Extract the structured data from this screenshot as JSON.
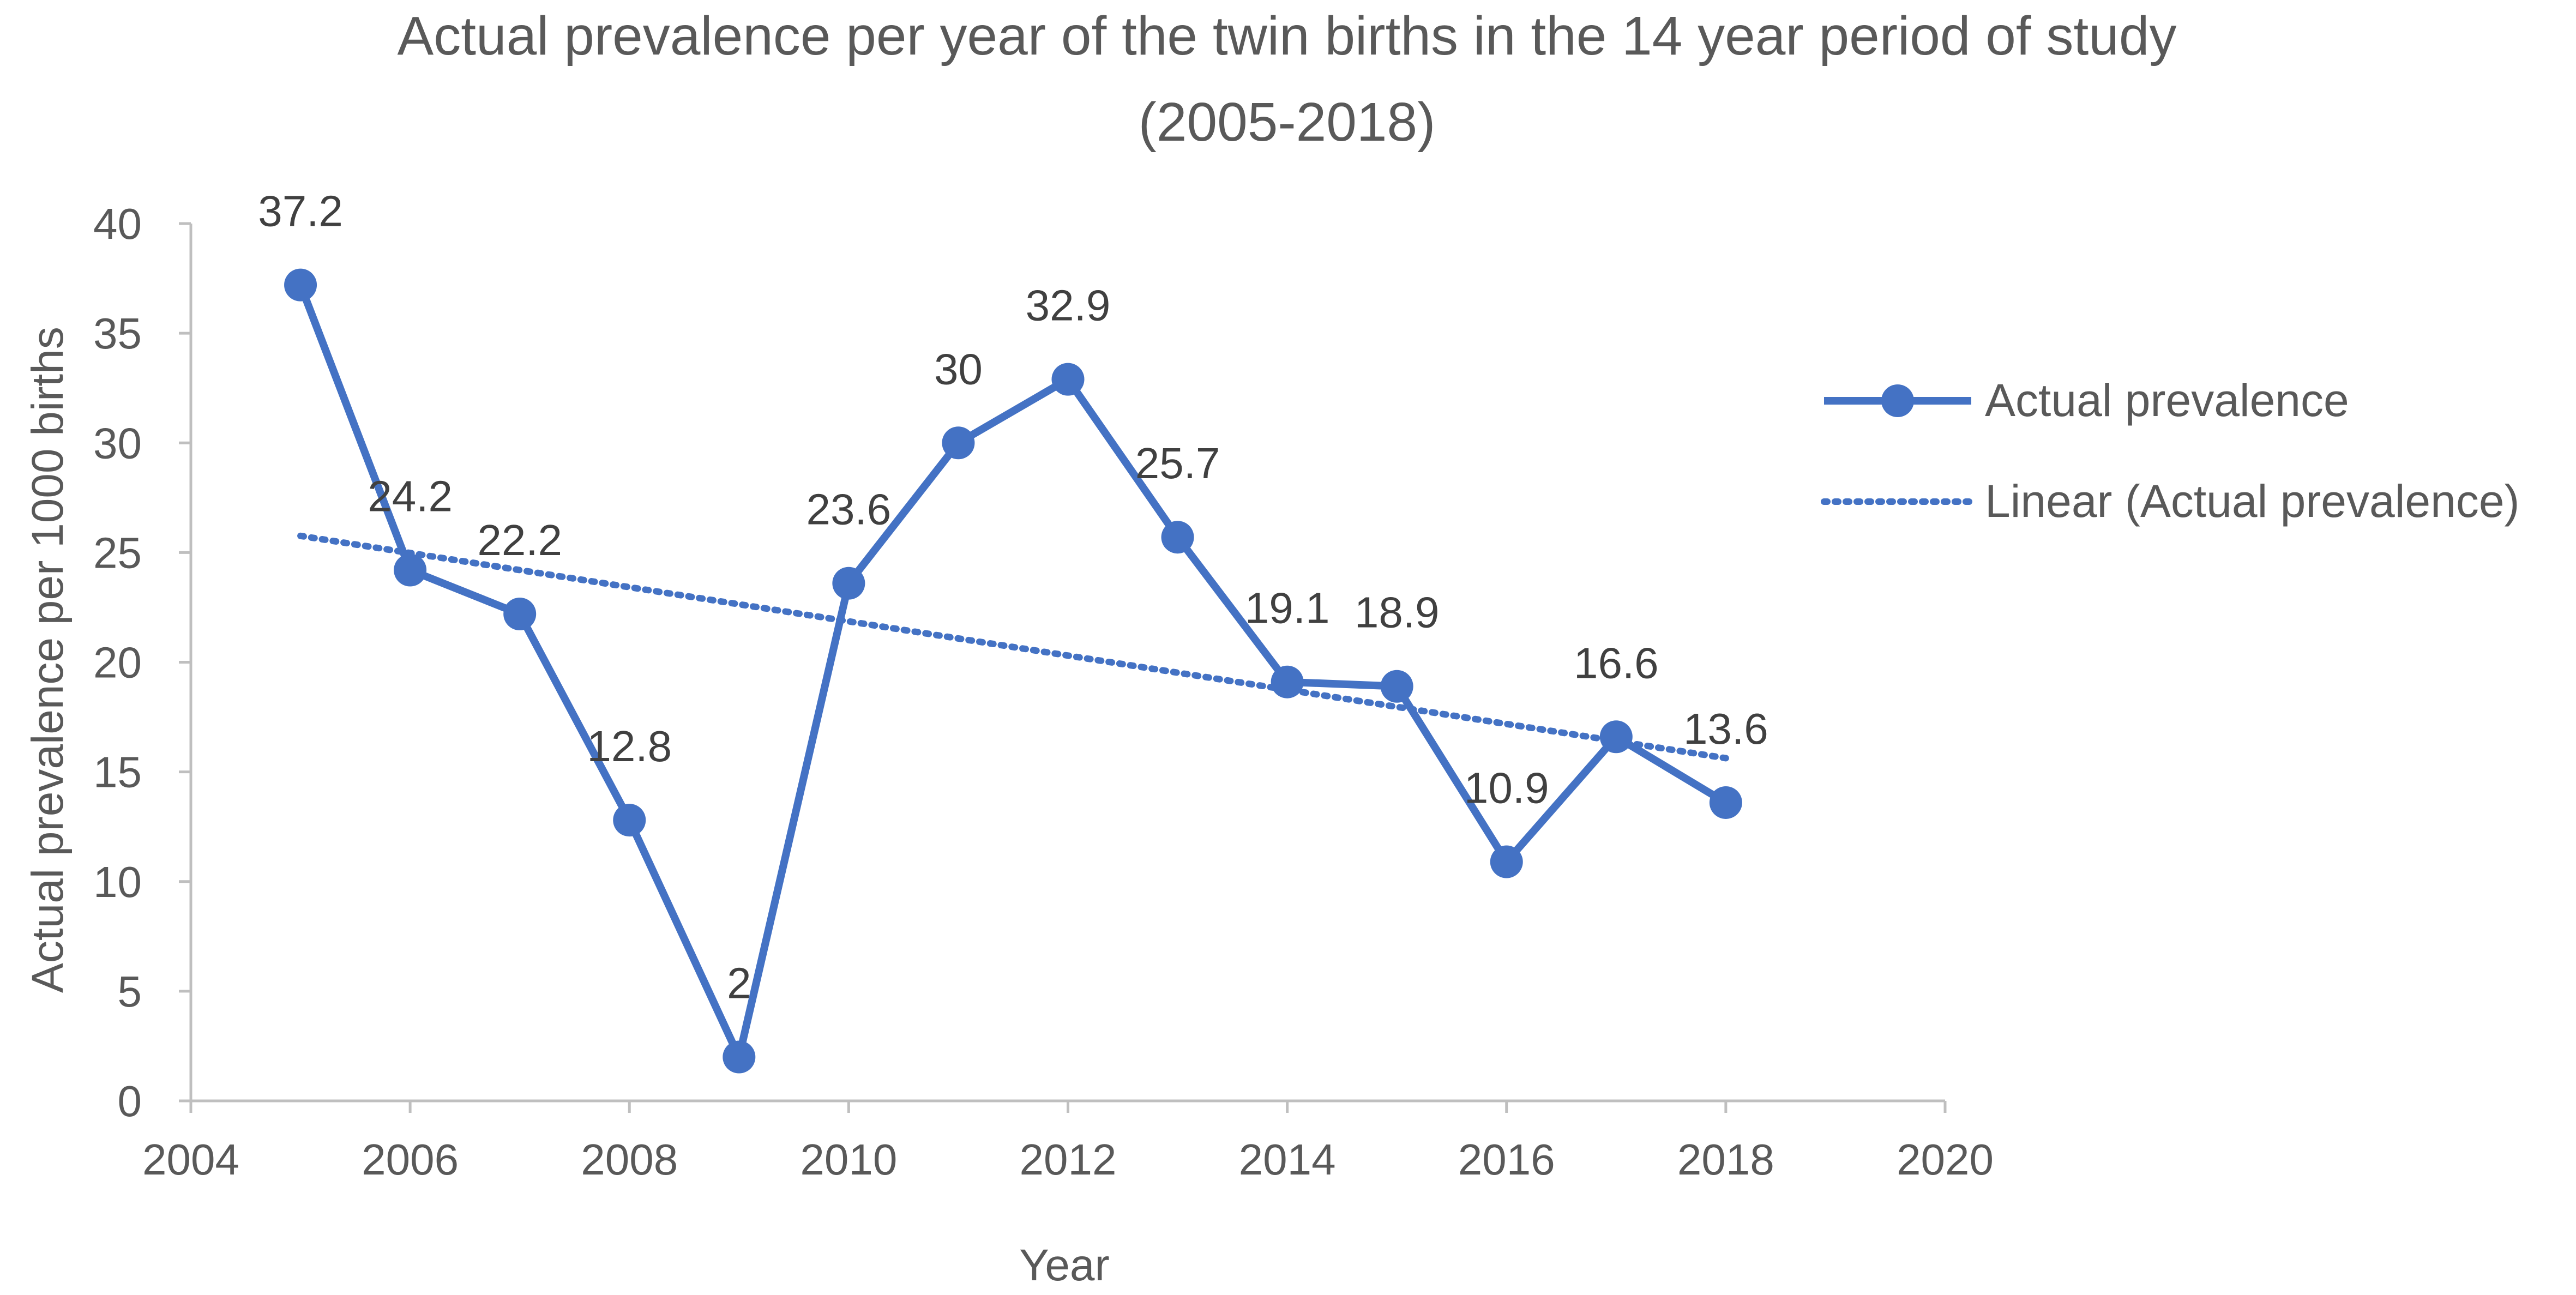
{
  "chart_data": {
    "type": "line",
    "title": "Actual prevalence per year of the twin births in the 14 year period of study",
    "subtitle": "(2005-2018)",
    "xlabel": "Year",
    "ylabel": "Actual prevalence per 1000 births",
    "xlim": [
      2004,
      2020
    ],
    "ylim": [
      0,
      40
    ],
    "xticks": [
      2004,
      2006,
      2008,
      2010,
      2012,
      2014,
      2016,
      2018,
      2020
    ],
    "yticks": [
      0,
      5,
      10,
      15,
      20,
      25,
      30,
      35,
      40
    ],
    "grid": false,
    "legend_position": "right",
    "series": [
      {
        "name": "Actual prevalence",
        "color": "#4472C4",
        "marker": "circle",
        "x": [
          2005,
          2006,
          2007,
          2008,
          2009,
          2010,
          2011,
          2012,
          2013,
          2014,
          2015,
          2016,
          2017,
          2018
        ],
        "y": [
          37.2,
          24.2,
          22.2,
          12.8,
          2,
          23.6,
          30,
          32.9,
          25.7,
          19.1,
          18.9,
          10.9,
          16.6,
          13.6
        ],
        "labels": [
          "37.2",
          "24.2",
          "22.2",
          "12.8",
          "2",
          "23.6",
          "30",
          "32.9",
          "25.7",
          "19.1",
          "18.9",
          "10.9",
          "16.6",
          "13.6"
        ]
      }
    ],
    "trendline": {
      "name": "Linear (Actual prevalence)",
      "type": "linear",
      "style": "dotted",
      "color": "#4472C4"
    }
  }
}
